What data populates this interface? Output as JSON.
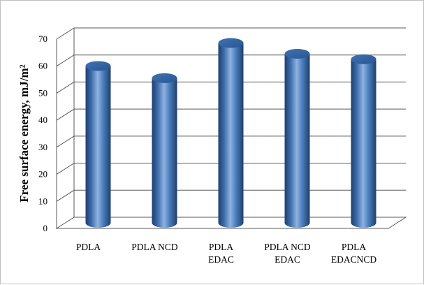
{
  "chart_data": {
    "type": "bar",
    "style": "3d-cylinder",
    "categories": [
      [
        "PDLA"
      ],
      [
        "PDLA NCD"
      ],
      [
        "PDLA",
        "EDAC"
      ],
      [
        "PDLA NCD",
        "EDAC"
      ],
      [
        "PDLA",
        "EDACNCD"
      ]
    ],
    "values": [
      58,
      53.5,
      66.5,
      62.5,
      60.5
    ],
    "title": "",
    "xlabel": "",
    "ylabel": "Free surface energy, mJ/m²",
    "ylim": [
      0,
      70
    ],
    "yticks": [
      "0",
      "10",
      "20",
      "30",
      "40",
      "50",
      "60",
      "70"
    ],
    "grid": true,
    "legend": "none",
    "colors": {
      "bar": "#4a7ebb",
      "bar_dark": "#1f3f6e",
      "bar_light": "#a9c5ec",
      "grid": "#595959",
      "floor": "#ffffff"
    }
  }
}
